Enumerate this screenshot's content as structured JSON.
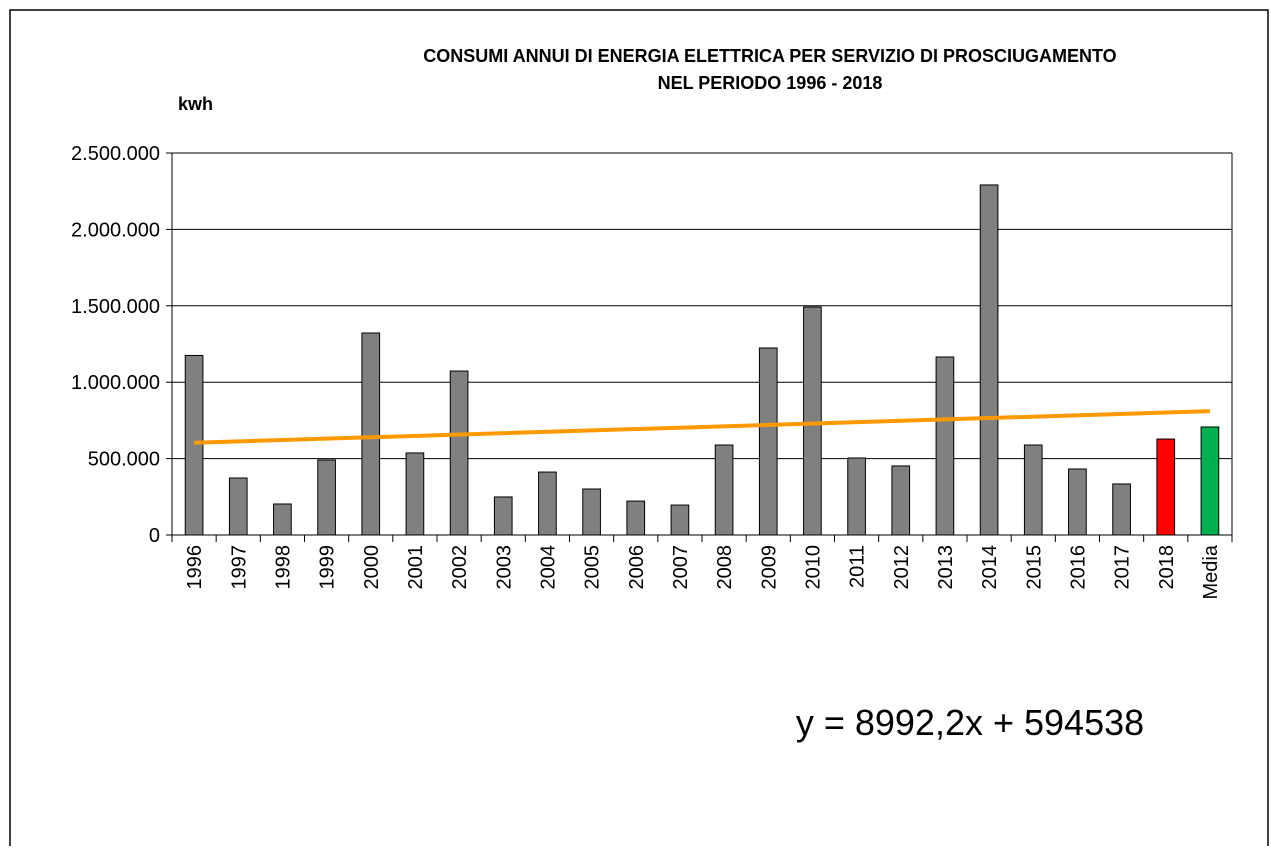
{
  "chart_data": {
    "type": "bar",
    "title": "CONSUMI ANNUI DI ENERGIA ELETTRICA PER SERVIZIO DI PROSCIUGAMENTO",
    "subtitle": "NEL PERIODO  1996 - 2018",
    "y_label": "kwh",
    "categories": [
      "1996",
      "1997",
      "1998",
      "1999",
      "2000",
      "2001",
      "2002",
      "2003",
      "2004",
      "2005",
      "2006",
      "2007",
      "2008",
      "2009",
      "2010",
      "2011",
      "2012",
      "2013",
      "2014",
      "2015",
      "2016",
      "2017",
      "2018",
      "Media"
    ],
    "values": [
      1175000,
      373000,
      203000,
      491000,
      1322000,
      537000,
      1073000,
      249000,
      412000,
      301000,
      222000,
      196000,
      589000,
      1224000,
      1492000,
      504000,
      452000,
      1165000,
      2291000,
      589000,
      432000,
      334000,
      628000,
      707000
    ],
    "colors": [
      "#808080",
      "#808080",
      "#808080",
      "#808080",
      "#808080",
      "#808080",
      "#808080",
      "#808080",
      "#808080",
      "#808080",
      "#808080",
      "#808080",
      "#808080",
      "#808080",
      "#808080",
      "#808080",
      "#808080",
      "#808080",
      "#808080",
      "#808080",
      "#808080",
      "#808080",
      "#ff0000",
      "#00b050"
    ],
    "ylim": [
      0,
      2500000
    ],
    "yticks": [
      0,
      {
        "value": 500000,
        "label": "500.000"
      },
      {
        "value": 1000000,
        "label": "1.000.000"
      },
      {
        "value": 1500000,
        "label": "1.500.000"
      },
      {
        "value": 2000000,
        "label": "2.000.000"
      },
      {
        "value": 2500000,
        "label": "2.500.000"
      }
    ],
    "grid": true,
    "trendline": {
      "label": "y = 8992,2x + 594538",
      "slope": 8992.2,
      "intercept": 594538,
      "color": "#ff9900"
    }
  }
}
